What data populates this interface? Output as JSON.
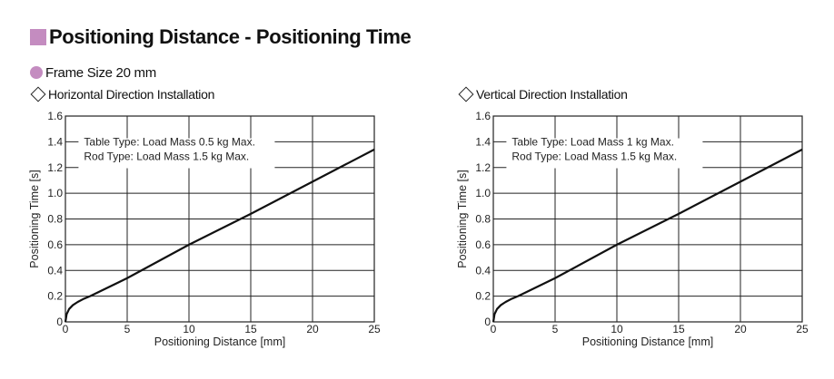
{
  "heading": {
    "title": "Positioning Distance - Positioning Time",
    "frame_size": "Frame Size 20 mm",
    "marker_color": "#c48cc0"
  },
  "chart_data": [
    {
      "type": "line",
      "subtitle": "Horizontal Direction Installation",
      "xlabel": "Positioning Distance [mm]",
      "ylabel": "Positioning Time [s]",
      "xlim": [
        0,
        25
      ],
      "ylim": [
        0,
        1.6
      ],
      "xticks": [
        0,
        5,
        10,
        15,
        20,
        25
      ],
      "yticks": [
        0,
        0.2,
        0.4,
        0.6,
        0.8,
        1.0,
        1.2,
        1.4,
        1.6
      ],
      "ytick_labels": [
        "0",
        "0.2",
        "0.4",
        "0.6",
        "0.8",
        "1.0",
        "1.2",
        "1.4",
        "1.6"
      ],
      "grid": true,
      "annotation": [
        "Table Type: Load Mass 0.5 kg Max.",
        "Rod Type: Load Mass 1.5 kg Max."
      ],
      "series": [
        {
          "x": [
            0,
            0.1,
            0.3,
            0.6,
            1.0,
            1.5,
            2.0,
            5,
            10,
            15,
            20,
            25
          ],
          "y": [
            0,
            0.06,
            0.1,
            0.13,
            0.155,
            0.18,
            0.2,
            0.34,
            0.6,
            0.84,
            1.09,
            1.34
          ]
        }
      ]
    },
    {
      "type": "line",
      "subtitle": "Vertical Direction Installation",
      "xlabel": "Positioning Distance [mm]",
      "ylabel": "Positioning Time [s]",
      "xlim": [
        0,
        25
      ],
      "ylim": [
        0,
        1.6
      ],
      "xticks": [
        0,
        5,
        10,
        15,
        20,
        25
      ],
      "yticks": [
        0,
        0.2,
        0.4,
        0.6,
        0.8,
        1.0,
        1.2,
        1.4,
        1.6
      ],
      "ytick_labels": [
        "0",
        "0.2",
        "0.4",
        "0.6",
        "0.8",
        "1.0",
        "1.2",
        "1.4",
        "1.6"
      ],
      "grid": true,
      "annotation": [
        "Table Type: Load Mass 1 kg Max.",
        "Rod Type: Load Mass 1.5 kg Max."
      ],
      "series": [
        {
          "x": [
            0,
            0.1,
            0.3,
            0.6,
            1.0,
            1.5,
            2.0,
            5,
            10,
            15,
            20,
            25
          ],
          "y": [
            0,
            0.06,
            0.1,
            0.13,
            0.155,
            0.18,
            0.2,
            0.34,
            0.6,
            0.84,
            1.09,
            1.34
          ]
        }
      ]
    }
  ]
}
